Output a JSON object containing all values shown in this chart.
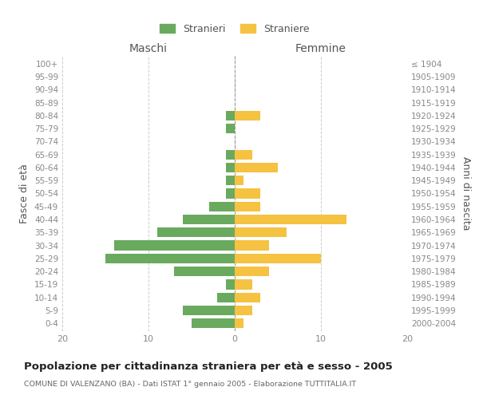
{
  "age_groups": [
    "0-4",
    "5-9",
    "10-14",
    "15-19",
    "20-24",
    "25-29",
    "30-34",
    "35-39",
    "40-44",
    "45-49",
    "50-54",
    "55-59",
    "60-64",
    "65-69",
    "70-74",
    "75-79",
    "80-84",
    "85-89",
    "90-94",
    "95-99",
    "100+"
  ],
  "birth_years": [
    "2000-2004",
    "1995-1999",
    "1990-1994",
    "1985-1989",
    "1980-1984",
    "1975-1979",
    "1970-1974",
    "1965-1969",
    "1960-1964",
    "1955-1959",
    "1950-1954",
    "1945-1949",
    "1940-1944",
    "1935-1939",
    "1930-1934",
    "1925-1929",
    "1920-1924",
    "1915-1919",
    "1910-1914",
    "1905-1909",
    "≤ 1904"
  ],
  "maschi": [
    5,
    6,
    2,
    1,
    7,
    15,
    14,
    9,
    6,
    3,
    1,
    1,
    1,
    1,
    0,
    1,
    1,
    0,
    0,
    0,
    0
  ],
  "femmine": [
    1,
    2,
    3,
    2,
    4,
    10,
    4,
    6,
    13,
    3,
    3,
    1,
    5,
    2,
    0,
    0,
    3,
    0,
    0,
    0,
    0
  ],
  "color_maschi": "#6aaa5f",
  "color_femmine": "#f5c242",
  "xlim": 20,
  "title": "Popolazione per cittadinanza straniera per età e sesso - 2005",
  "subtitle": "COMUNE DI VALENZANO (BA) - Dati ISTAT 1° gennaio 2005 - Elaborazione TUTTITALIA.IT",
  "ylabel_left": "Fasce di età",
  "ylabel_right": "Anni di nascita",
  "label_maschi": "Stranieri",
  "label_femmine": "Straniere",
  "header_left": "Maschi",
  "header_right": "Femmine",
  "background_color": "#ffffff",
  "grid_color": "#cccccc"
}
